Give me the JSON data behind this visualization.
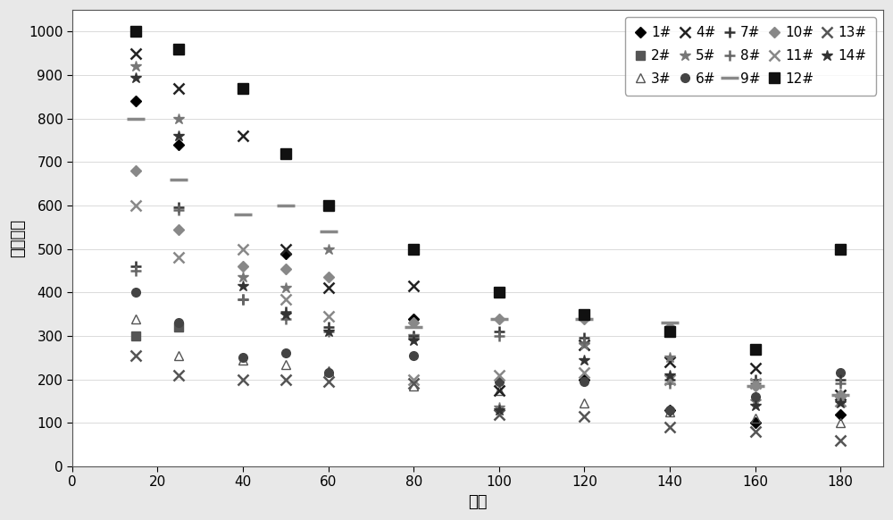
{
  "xlabel": "时间",
  "ylabel": "绍缘电阻",
  "xlim": [
    0,
    190
  ],
  "ylim": [
    0,
    1050
  ],
  "xticks": [
    0,
    20,
    40,
    60,
    80,
    100,
    120,
    140,
    160,
    180
  ],
  "yticks": [
    0,
    100,
    200,
    300,
    400,
    500,
    600,
    700,
    800,
    900,
    1000
  ],
  "series": [
    {
      "label": "1#",
      "marker": "D",
      "color": "#000000",
      "markersize": 6,
      "markeredgewidth": 1.0,
      "data": [
        [
          15,
          840
        ],
        [
          25,
          740
        ],
        [
          50,
          490
        ],
        [
          80,
          340
        ],
        [
          100,
          400
        ],
        [
          120,
          200
        ],
        [
          140,
          130
        ],
        [
          160,
          100
        ],
        [
          180,
          120
        ]
      ]
    },
    {
      "label": "2#",
      "marker": "s",
      "color": "#555555",
      "markersize": 7,
      "markeredgewidth": 1.0,
      "data": [
        [
          15,
          300
        ],
        [
          25,
          320
        ],
        [
          40,
          870
        ],
        [
          50,
          720
        ],
        [
          60,
          600
        ],
        [
          80,
          500
        ],
        [
          100,
          400
        ],
        [
          120,
          350
        ],
        [
          140,
          310
        ],
        [
          160,
          270
        ],
        [
          180,
          500
        ]
      ]
    },
    {
      "label": "3#",
      "marker": "^",
      "color": "#555555",
      "markersize": 7,
      "markeredgewidth": 1.0,
      "fillstyle": "none",
      "data": [
        [
          15,
          340
        ],
        [
          25,
          255
        ],
        [
          40,
          245
        ],
        [
          50,
          235
        ],
        [
          60,
          220
        ],
        [
          80,
          185
        ],
        [
          100,
          175
        ],
        [
          120,
          145
        ],
        [
          140,
          125
        ],
        [
          160,
          110
        ],
        [
          180,
          100
        ]
      ]
    },
    {
      "label": "4#",
      "marker": "x",
      "color": "#222222",
      "markersize": 8,
      "markeredgewidth": 1.8,
      "data": [
        [
          15,
          950
        ],
        [
          25,
          870
        ],
        [
          40,
          760
        ],
        [
          50,
          500
        ],
        [
          60,
          410
        ],
        [
          80,
          415
        ],
        [
          100,
          175
        ],
        [
          120,
          280
        ],
        [
          140,
          240
        ],
        [
          160,
          225
        ],
        [
          180,
          165
        ]
      ]
    },
    {
      "label": "5#",
      "marker": "*",
      "color": "#777777",
      "markersize": 9,
      "markeredgewidth": 1.0,
      "data": [
        [
          15,
          920
        ],
        [
          25,
          800
        ],
        [
          40,
          435
        ],
        [
          50,
          410
        ],
        [
          60,
          500
        ],
        [
          80,
          300
        ],
        [
          100,
          135
        ],
        [
          120,
          280
        ],
        [
          140,
          250
        ],
        [
          160,
          150
        ],
        [
          180,
          160
        ]
      ]
    },
    {
      "label": "6#",
      "marker": "o",
      "color": "#444444",
      "markersize": 7,
      "markeredgewidth": 1.0,
      "data": [
        [
          15,
          400
        ],
        [
          25,
          330
        ],
        [
          40,
          250
        ],
        [
          50,
          260
        ],
        [
          60,
          215
        ],
        [
          80,
          255
        ],
        [
          100,
          195
        ],
        [
          120,
          195
        ],
        [
          140,
          130
        ],
        [
          160,
          160
        ],
        [
          180,
          215
        ]
      ]
    },
    {
      "label": "7#",
      "marker": "+",
      "color": "#333333",
      "markersize": 9,
      "markeredgewidth": 1.8,
      "data": [
        [
          15,
          460
        ],
        [
          25,
          595
        ],
        [
          40,
          385
        ],
        [
          50,
          355
        ],
        [
          60,
          320
        ],
        [
          80,
          300
        ],
        [
          100,
          310
        ],
        [
          120,
          295
        ],
        [
          140,
          200
        ],
        [
          160,
          200
        ],
        [
          180,
          200
        ]
      ]
    },
    {
      "label": "8#",
      "marker": "+",
      "color": "#666666",
      "markersize": 9,
      "markeredgewidth": 1.8,
      "data": [
        [
          15,
          450
        ],
        [
          25,
          590
        ],
        [
          40,
          385
        ],
        [
          50,
          340
        ],
        [
          60,
          310
        ],
        [
          80,
          295
        ],
        [
          100,
          300
        ],
        [
          120,
          285
        ],
        [
          140,
          190
        ],
        [
          160,
          190
        ],
        [
          180,
          190
        ]
      ]
    },
    {
      "label": "9#",
      "marker": "_",
      "color": "#888888",
      "markersize": 14,
      "markeredgewidth": 2.5,
      "data": [
        [
          15,
          800
        ],
        [
          25,
          660
        ],
        [
          40,
          580
        ],
        [
          50,
          600
        ],
        [
          60,
          540
        ],
        [
          80,
          320
        ],
        [
          100,
          340
        ],
        [
          120,
          340
        ],
        [
          140,
          330
        ],
        [
          160,
          185
        ],
        [
          180,
          165
        ]
      ]
    },
    {
      "label": "10#",
      "marker": "D",
      "color": "#888888",
      "markersize": 6,
      "markeredgewidth": 1.0,
      "data": [
        [
          15,
          680
        ],
        [
          25,
          545
        ],
        [
          40,
          460
        ],
        [
          50,
          455
        ],
        [
          60,
          435
        ],
        [
          80,
          330
        ],
        [
          100,
          340
        ],
        [
          120,
          340
        ],
        [
          140,
          320
        ],
        [
          160,
          185
        ],
        [
          180,
          165
        ]
      ]
    },
    {
      "label": "11#",
      "marker": "x",
      "color": "#888888",
      "markersize": 9,
      "markeredgewidth": 1.8,
      "data": [
        [
          15,
          600
        ],
        [
          25,
          480
        ],
        [
          40,
          500
        ],
        [
          50,
          385
        ],
        [
          60,
          345
        ],
        [
          80,
          200
        ],
        [
          100,
          210
        ],
        [
          120,
          215
        ],
        [
          140,
          200
        ],
        [
          160,
          190
        ],
        [
          180,
          150
        ]
      ]
    },
    {
      "label": "12#",
      "marker": "s",
      "color": "#111111",
      "markersize": 8,
      "markeredgewidth": 1.0,
      "data": [
        [
          15,
          1000
        ],
        [
          25,
          960
        ],
        [
          40,
          870
        ],
        [
          50,
          720
        ],
        [
          60,
          600
        ],
        [
          80,
          500
        ],
        [
          100,
          400
        ],
        [
          120,
          350
        ],
        [
          140,
          310
        ],
        [
          160,
          270
        ],
        [
          180,
          500
        ]
      ]
    },
    {
      "label": "13#",
      "marker": "x",
      "color": "#555555",
      "markersize": 8,
      "markeredgewidth": 1.8,
      "data": [
        [
          15,
          255
        ],
        [
          25,
          210
        ],
        [
          40,
          200
        ],
        [
          50,
          200
        ],
        [
          60,
          195
        ],
        [
          80,
          190
        ],
        [
          100,
          120
        ],
        [
          120,
          115
        ],
        [
          140,
          90
        ],
        [
          160,
          80
        ],
        [
          180,
          60
        ]
      ]
    },
    {
      "label": "14#",
      "marker": "*",
      "color": "#333333",
      "markersize": 9,
      "markeredgewidth": 1.0,
      "data": [
        [
          15,
          895
        ],
        [
          25,
          760
        ],
        [
          40,
          415
        ],
        [
          50,
          350
        ],
        [
          60,
          310
        ],
        [
          80,
          290
        ],
        [
          100,
          130
        ],
        [
          120,
          245
        ],
        [
          140,
          210
        ],
        [
          160,
          140
        ],
        [
          180,
          145
        ]
      ]
    }
  ]
}
